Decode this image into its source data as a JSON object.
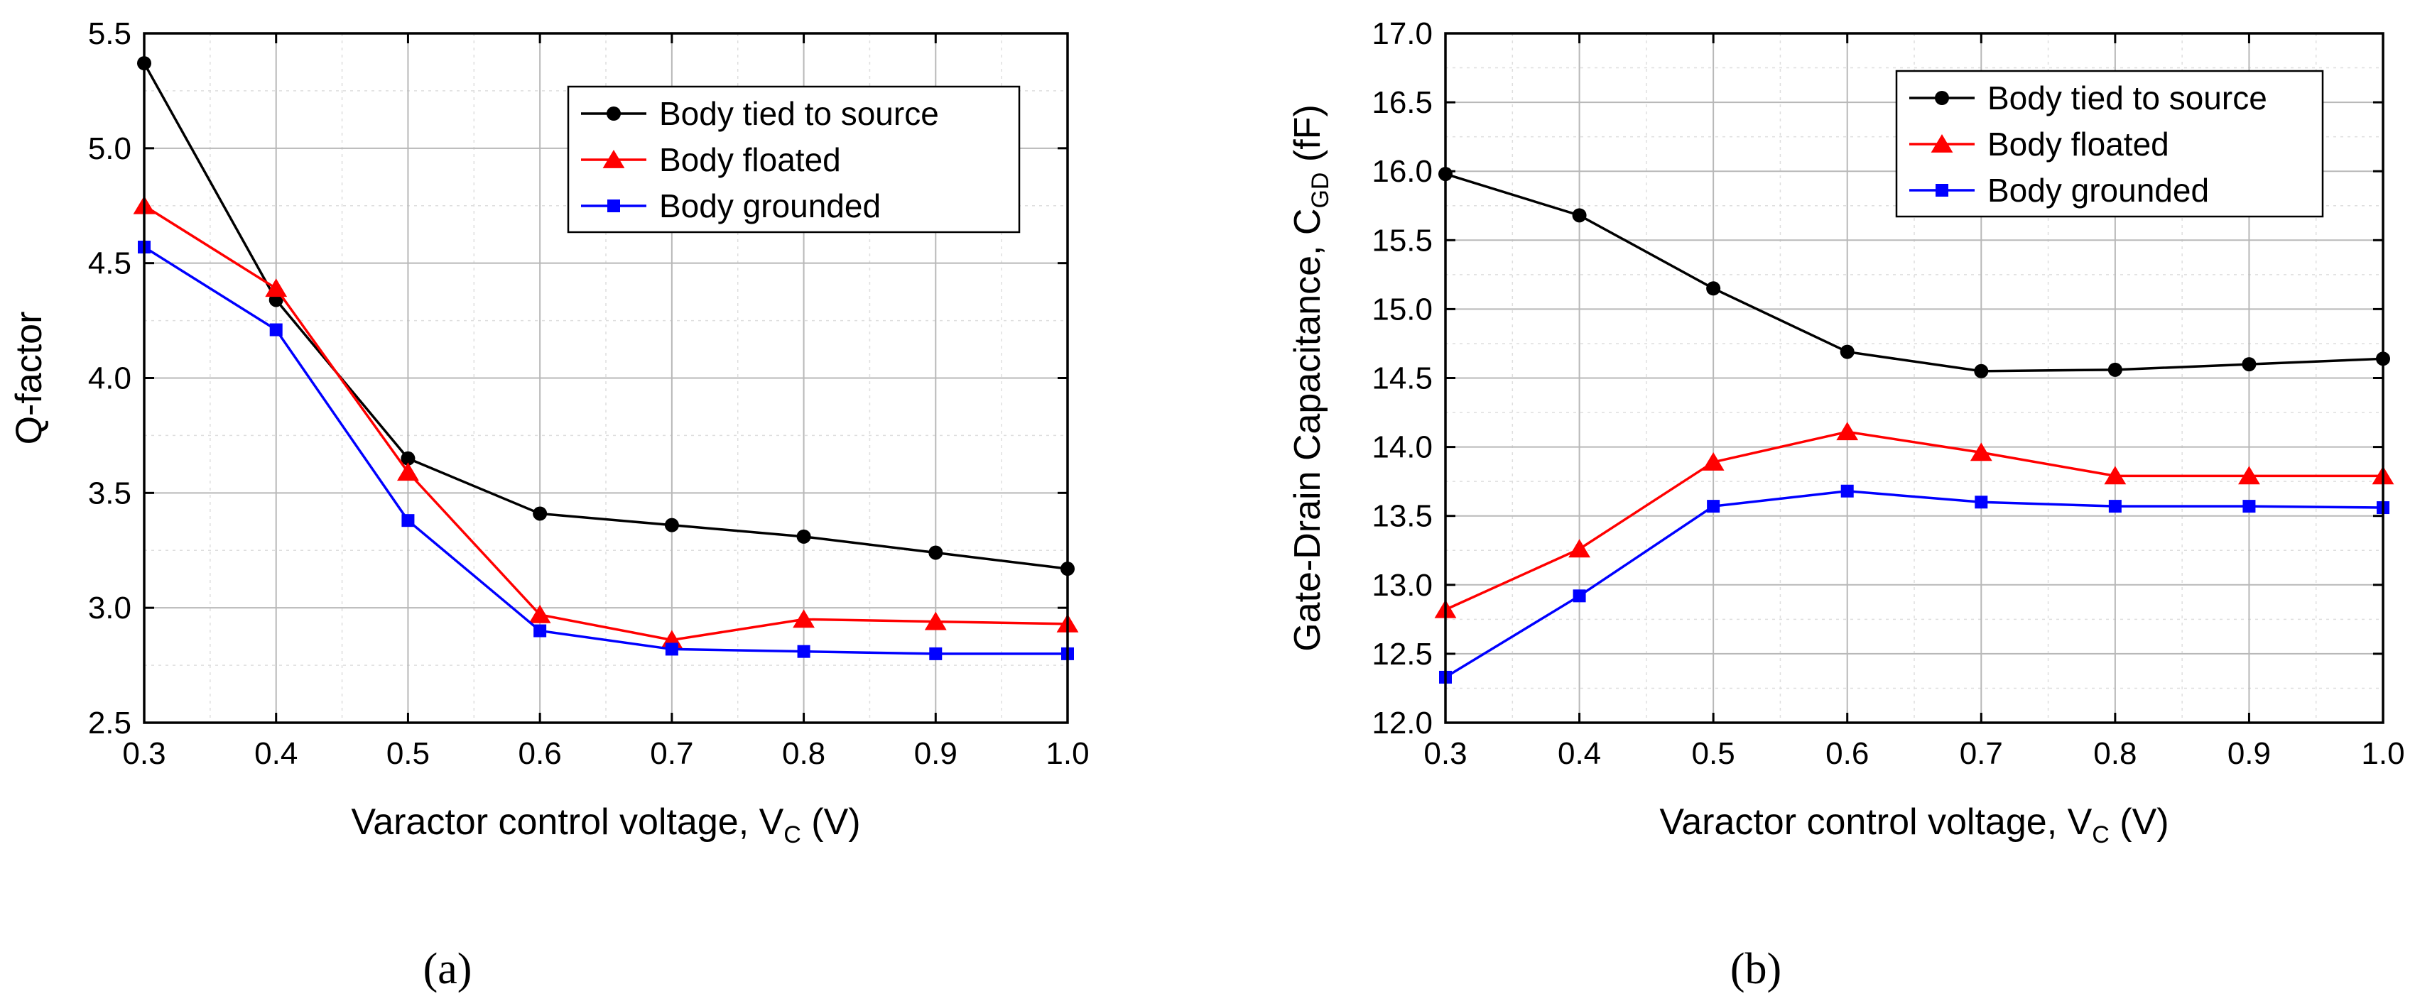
{
  "chart_data": [
    {
      "type": "line",
      "panel_label": "(a)",
      "xlabel": {
        "main": "Varactor control voltage, V",
        "sub": "C",
        "unit": " (V)"
      },
      "ylabel": {
        "main": "Q-factor",
        "sub": "",
        "unit": ""
      },
      "xlim": [
        0.3,
        1.0
      ],
      "ylim": [
        2.5,
        5.5
      ],
      "xticks": [
        0.3,
        0.4,
        0.5,
        0.6,
        0.7,
        0.8,
        0.9,
        1.0
      ],
      "xtick_labels": [
        "0.3",
        "0.4",
        "0.5",
        "0.6",
        "0.7",
        "0.8",
        "0.9",
        "1.0"
      ],
      "yticks": [
        2.5,
        3.0,
        3.5,
        4.0,
        4.5,
        5.0,
        5.5
      ],
      "ytick_labels": [
        "2.5",
        "3.0",
        "3.5",
        "4.0",
        "4.5",
        "5.0",
        "5.5"
      ],
      "grid": true,
      "legend_position": "top-right",
      "x": [
        0.3,
        0.4,
        0.5,
        0.6,
        0.7,
        0.8,
        0.9,
        1.0
      ],
      "series": [
        {
          "name": "Body tied to source",
          "color": "#000000",
          "marker": "circle",
          "values": [
            5.37,
            4.34,
            3.65,
            3.41,
            3.36,
            3.31,
            3.24,
            3.17
          ]
        },
        {
          "name": "Body floated",
          "color": "#ff0000",
          "marker": "triangle",
          "values": [
            4.75,
            4.39,
            3.59,
            2.97,
            2.86,
            2.95,
            2.94,
            2.93
          ]
        },
        {
          "name": "Body grounded",
          "color": "#0000ff",
          "marker": "square",
          "values": [
            4.57,
            4.21,
            3.38,
            2.9,
            2.82,
            2.81,
            2.8,
            2.8
          ]
        }
      ]
    },
    {
      "type": "line",
      "panel_label": "(b)",
      "xlabel": {
        "main": "Varactor control voltage, V",
        "sub": "C",
        "unit": " (V)"
      },
      "ylabel": {
        "main": "Gate-Drain Capacitance, C",
        "sub": "GD",
        "unit": " (fF)"
      },
      "xlim": [
        0.3,
        1.0
      ],
      "ylim": [
        12.0,
        17.0
      ],
      "xticks": [
        0.3,
        0.4,
        0.5,
        0.6,
        0.7,
        0.8,
        0.9,
        1.0
      ],
      "xtick_labels": [
        "0.3",
        "0.4",
        "0.5",
        "0.6",
        "0.7",
        "0.8",
        "0.9",
        "1.0"
      ],
      "yticks": [
        12.0,
        12.5,
        13.0,
        13.5,
        14.0,
        14.5,
        15.0,
        15.5,
        16.0,
        16.5,
        17.0
      ],
      "ytick_labels": [
        "12.0",
        "12.5",
        "13.0",
        "13.5",
        "14.0",
        "14.5",
        "15.0",
        "15.5",
        "16.0",
        "16.5",
        "17.0"
      ],
      "grid": true,
      "legend_position": "top-right",
      "x": [
        0.3,
        0.4,
        0.5,
        0.6,
        0.7,
        0.8,
        0.9,
        1.0
      ],
      "series": [
        {
          "name": "Body tied to source",
          "color": "#000000",
          "marker": "circle",
          "values": [
            15.98,
            15.68,
            15.15,
            14.69,
            14.55,
            14.56,
            14.6,
            14.64
          ]
        },
        {
          "name": "Body floated",
          "color": "#ff0000",
          "marker": "triangle",
          "values": [
            12.82,
            13.26,
            13.89,
            14.11,
            13.96,
            13.79,
            13.79,
            13.79
          ]
        },
        {
          "name": "Body grounded",
          "color": "#0000ff",
          "marker": "square",
          "values": [
            12.33,
            12.92,
            13.57,
            13.68,
            13.6,
            13.57,
            13.57,
            13.56
          ]
        }
      ]
    }
  ]
}
